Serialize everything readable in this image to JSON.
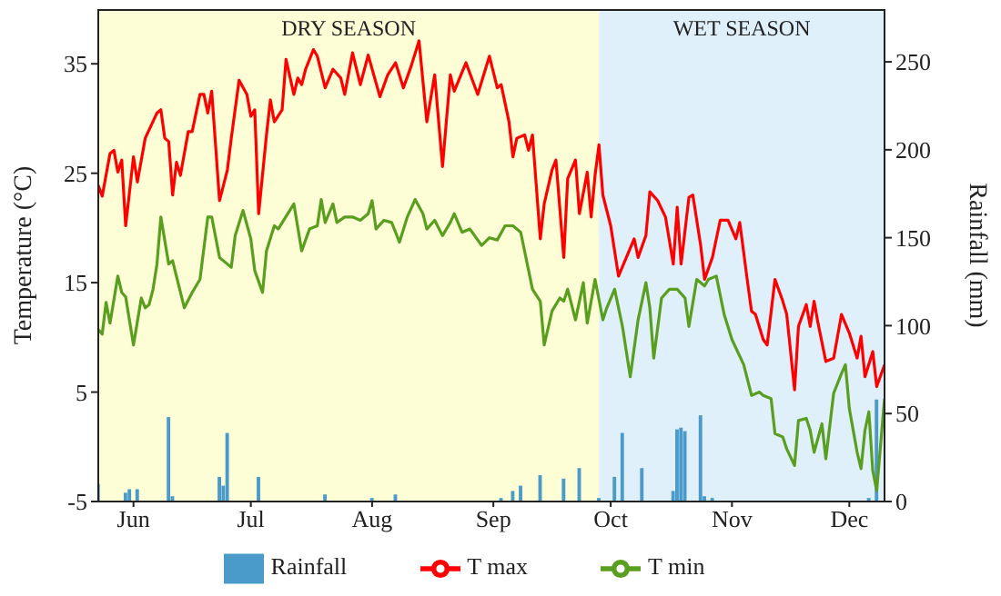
{
  "chart_data": {
    "type": "line",
    "xlim": [
      "--06-06",
      "--12-24"
    ],
    "xticks": [
      {
        "value": "--06-15",
        "label": "Jun"
      },
      {
        "value": "--07-15",
        "label": "Jul"
      },
      {
        "value": "--08-15",
        "label": "Aug"
      },
      {
        "value": "--09-15",
        "label": "Sep"
      },
      {
        "value": "--10-15",
        "label": "Oct"
      },
      {
        "value": "--11-15",
        "label": "Nov"
      },
      {
        "value": "--12-15",
        "label": "Dec"
      }
    ],
    "ylim": [
      -5,
      40
    ],
    "yticks": [
      -5,
      5,
      15,
      25,
      35
    ],
    "y2lim": [
      0,
      280
    ],
    "y2ticks": [
      0,
      50,
      100,
      150,
      200,
      250
    ],
    "ylabel": "Temperature (°C)",
    "y2label": "Rainfall (mm)",
    "legend": "bottom",
    "bands": [
      {
        "axis": "x",
        "from": "--06-06",
        "to": "--10-12",
        "label": "DRY SEASON",
        "color": "#fdfdd6"
      },
      {
        "axis": "x",
        "from": "--10-12",
        "to": "--12-24",
        "label": "WET SEASON",
        "color": "#dff0fb"
      }
    ],
    "series": [
      {
        "name": "Rainfall",
        "type": "bar",
        "axis": "y2",
        "color": "#4a9bc9",
        "x": [
          "--06-06",
          "--06-13",
          "--06-14",
          "--06-16",
          "--06-24",
          "--06-25",
          "--07-07",
          "--07-08",
          "--07-09",
          "--07-17",
          "--08-03",
          "--08-15",
          "--08-21",
          "--09-17",
          "--09-20",
          "--09-22",
          "--09-27",
          "--10-03",
          "--10-07",
          "--10-12",
          "--10-16",
          "--10-18",
          "--10-23",
          "--10-31",
          "--11-01",
          "--11-02",
          "--11-03",
          "--11-07",
          "--11-08",
          "--11-10",
          "--12-20",
          "--12-22"
        ],
        "values": [
          10,
          5,
          7,
          7,
          48,
          3,
          14,
          9,
          39,
          14,
          4,
          2,
          4,
          2,
          6,
          9,
          15,
          13,
          19,
          2,
          14,
          39,
          19,
          6,
          41,
          42,
          40,
          49,
          3,
          2,
          2,
          58
        ]
      },
      {
        "name": "T max",
        "type": "line",
        "color": "#ff0000",
        "x": [
          "--06-06",
          "--06-07",
          "--06-09",
          "--06-10",
          "--06-11",
          "--06-12",
          "--06-13",
          "--06-15",
          "--06-16",
          "--06-18",
          "--06-21",
          "--06-22",
          "--06-23",
          "--06-24",
          "--06-25",
          "--06-26",
          "--06-27",
          "--06-29",
          "--06-30",
          "--07-02",
          "--07-03",
          "--07-04",
          "--07-05",
          "--07-07",
          "--07-09",
          "--07-10",
          "--07-12",
          "--07-14",
          "--07-15",
          "--07-16",
          "--07-17",
          "--07-19",
          "--07-20",
          "--07-21",
          "--07-23",
          "--07-24",
          "--07-26",
          "--07-27",
          "--07-28",
          "--07-29",
          "--07-31",
          "--08-01",
          "--08-03",
          "--08-05",
          "--08-07",
          "--08-08",
          "--08-10",
          "--08-12",
          "--08-14",
          "--08-17",
          "--08-19",
          "--08-21",
          "--08-23",
          "--08-25",
          "--08-27",
          "--08-29",
          "--08-31",
          "--09-02",
          "--09-04",
          "--09-05",
          "--09-08",
          "--09-11",
          "--09-14",
          "--09-16",
          "--09-17",
          "--09-19",
          "--09-20",
          "--09-21",
          "--09-23",
          "--09-24",
          "--09-25",
          "--09-27",
          "--09-28",
          "--09-30",
          "--10-01",
          "--10-03",
          "--10-04",
          "--10-06",
          "--10-07",
          "--10-09",
          "--10-10",
          "--10-11",
          "--10-12",
          "--10-13",
          "--10-15",
          "--10-17",
          "--10-19",
          "--10-21",
          "--10-22",
          "--10-24",
          "--10-25",
          "--10-27",
          "--10-29",
          "--10-31",
          "--11-01",
          "--11-02",
          "--11-04",
          "--11-05",
          "--11-07",
          "--11-08",
          "--11-10",
          "--11-12",
          "--11-14",
          "--11-16",
          "--11-17",
          "--11-19",
          "--11-20",
          "--11-21",
          "--11-23",
          "--11-24",
          "--11-26",
          "--11-28",
          "--11-29",
          "--12-01",
          "--12-02",
          "--12-04",
          "--12-05",
          "--12-06",
          "--12-07",
          "--12-09",
          "--12-11",
          "--12-13",
          "--12-15",
          "--12-17",
          "--12-18",
          "--12-19",
          "--12-21",
          "--12-22",
          "--12-24"
        ],
        "values": [
          23.9,
          22.9,
          26.8,
          27.1,
          25.1,
          26.2,
          20.2,
          26.5,
          24.2,
          28.2,
          30.5,
          30.8,
          28.2,
          27.9,
          23.0,
          26.0,
          24.8,
          28.8,
          28.8,
          32.2,
          32.2,
          30.5,
          32.5,
          22.5,
          25.3,
          28.2,
          33.5,
          32.2,
          30.2,
          30.8,
          21.3,
          28.5,
          31.7,
          29.7,
          30.8,
          35.4,
          32.2,
          33.7,
          33.1,
          34.5,
          36.3,
          35.7,
          32.8,
          34.5,
          33.7,
          32.2,
          36.0,
          33.1,
          35.8,
          32.0,
          34.0,
          35.1,
          32.8,
          34.8,
          37.1,
          29.7,
          34.0,
          25.6,
          34.0,
          32.5,
          35.1,
          32.2,
          35.7,
          32.8,
          33.1,
          29.7,
          26.5,
          28.2,
          28.5,
          27.1,
          28.5,
          19.0,
          22.2,
          25.3,
          26.2,
          17.3,
          24.5,
          26.2,
          21.3,
          25.1,
          21.0,
          24.8,
          27.6,
          23.0,
          20.2,
          15.6,
          17.3,
          19.0,
          17.3,
          19.3,
          23.3,
          22.5,
          21.0,
          16.7,
          21.9,
          16.7,
          22.8,
          23.0,
          18.4,
          15.3,
          17.3,
          20.7,
          20.7,
          19.0,
          20.5,
          15.0,
          12.4,
          12.1,
          9.8,
          9.3,
          15.3,
          13.3,
          12.1,
          5.2,
          11.0,
          13.0,
          11.0,
          13.3,
          11.3,
          7.8,
          8.1,
          12.1,
          10.4,
          8.1,
          10.1,
          6.4,
          8.7,
          5.5,
          7.5
        ]
      },
      {
        "name": "T min",
        "type": "line",
        "color": "#5a9e1f",
        "x": [
          "--06-06",
          "--06-07",
          "--06-08",
          "--06-09",
          "--06-11",
          "--06-12",
          "--06-13",
          "--06-15",
          "--06-17",
          "--06-18",
          "--06-19",
          "--06-20",
          "--06-21",
          "--06-22",
          "--06-24",
          "--06-25",
          "--06-28",
          "--06-30",
          "--07-02",
          "--07-04",
          "--07-05",
          "--07-07",
          "--07-09",
          "--07-10",
          "--07-11",
          "--07-13",
          "--07-15",
          "--07-16",
          "--07-18",
          "--07-19",
          "--07-21",
          "--07-22",
          "--07-26",
          "--07-28",
          "--07-30",
          "--08-01",
          "--08-02",
          "--08-03",
          "--08-05",
          "--08-06",
          "--08-08",
          "--08-10",
          "--08-12",
          "--08-14",
          "--08-15",
          "--08-16",
          "--08-18",
          "--08-20",
          "--08-22",
          "--08-24",
          "--08-26",
          "--08-28",
          "--08-29",
          "--08-31",
          "--09-02",
          "--09-04",
          "--09-05",
          "--09-07",
          "--09-09",
          "--09-12",
          "--09-14",
          "--09-16",
          "--09-18",
          "--09-20",
          "--09-22",
          "--09-25",
          "--09-27",
          "--09-28",
          "--09-30",
          "--10-02",
          "--10-03",
          "--10-04",
          "--10-06",
          "--10-08",
          "--10-09",
          "--10-11",
          "--10-13",
          "--10-14",
          "--10-16",
          "--10-18",
          "--10-20",
          "--10-22",
          "--10-24",
          "--10-25",
          "--10-26",
          "--10-28",
          "--10-30",
          "--11-01",
          "--11-03",
          "--11-04",
          "--11-06",
          "--11-08",
          "--11-09",
          "--11-11",
          "--11-13",
          "--11-15",
          "--11-18",
          "--11-20",
          "--11-22",
          "--11-23",
          "--11-25",
          "--11-26",
          "--11-28",
          "--11-29",
          "--12-01",
          "--12-02",
          "--12-04",
          "--12-05",
          "--12-06",
          "--12-08",
          "--12-09",
          "--12-11",
          "--12-13",
          "--12-14",
          "--12-15",
          "--12-17",
          "--12-18",
          "--12-19",
          "--12-20",
          "--12-21",
          "--12-22",
          "--12-24"
        ],
        "values": [
          10.7,
          10.3,
          13.2,
          11.3,
          15.6,
          14.1,
          13.7,
          9.3,
          13.6,
          12.7,
          13.0,
          14.4,
          16.7,
          21.0,
          16.7,
          17.0,
          12.7,
          14.1,
          15.3,
          21.0,
          21.0,
          17.3,
          16.7,
          16.4,
          19.3,
          21.6,
          19.0,
          16.1,
          14.1,
          17.9,
          20.2,
          19.9,
          22.2,
          17.9,
          19.9,
          20.2,
          22.6,
          20.5,
          22.2,
          20.5,
          21.0,
          21.0,
          20.7,
          21.3,
          22.5,
          19.9,
          20.7,
          20.5,
          18.7,
          21.0,
          22.6,
          21.3,
          19.9,
          20.7,
          19.3,
          20.5,
          21.3,
          19.6,
          19.9,
          18.4,
          19.1,
          18.9,
          20.2,
          20.2,
          19.6,
          14.4,
          13.3,
          9.3,
          12.4,
          13.6,
          13.3,
          14.4,
          11.6,
          15.0,
          11.3,
          15.3,
          11.6,
          12.7,
          14.4,
          11.0,
          6.4,
          11.6,
          15.0,
          12.7,
          8.1,
          13.6,
          14.4,
          14.4,
          13.6,
          11.0,
          15.3,
          14.7,
          15.3,
          15.6,
          12.1,
          9.8,
          7.5,
          4.7,
          5.0,
          4.7,
          4.4,
          1.2,
          0.9,
          -0.2,
          -1.7,
          2.4,
          2.6,
          1.5,
          -0.5,
          2.1,
          -1.1,
          4.9,
          6.7,
          7.5,
          3.5,
          -0.5,
          -2.0,
          1.5,
          3.2,
          -2.2,
          -4.0,
          4.4
        ]
      }
    ]
  }
}
